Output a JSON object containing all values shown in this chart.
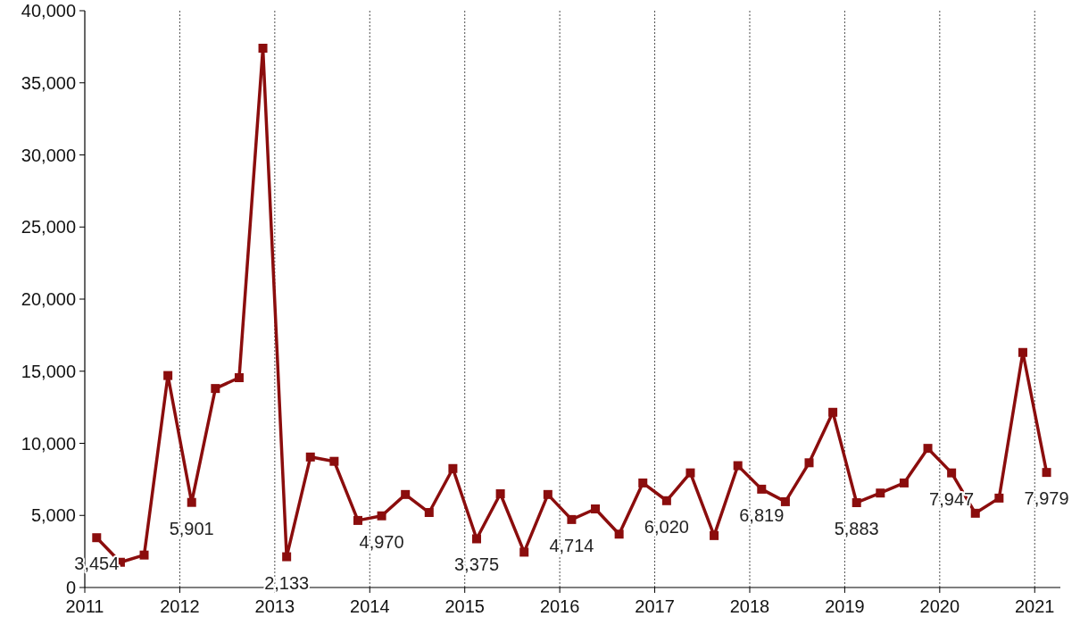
{
  "chart_data": {
    "type": "line",
    "x": [
      2011.125,
      2011.375,
      2011.625,
      2011.875,
      2012.125,
      2012.375,
      2012.625,
      2012.875,
      2013.125,
      2013.375,
      2013.625,
      2013.875,
      2014.125,
      2014.375,
      2014.625,
      2014.875,
      2015.125,
      2015.375,
      2015.625,
      2015.875,
      2016.125,
      2016.375,
      2016.625,
      2016.875,
      2017.125,
      2017.375,
      2017.625,
      2017.875,
      2018.125,
      2018.375,
      2018.625,
      2018.875,
      2019.125,
      2019.375,
      2019.625,
      2019.875,
      2020.125,
      2020.375,
      2020.625,
      2020.875,
      2021.125
    ],
    "series": [
      {
        "color": "#8b0d0d",
        "values": [
          3454,
          1750,
          2250,
          14700,
          5901,
          13800,
          14550,
          37400,
          2133,
          9050,
          8750,
          4650,
          4970,
          6450,
          5200,
          8250,
          3375,
          6500,
          2450,
          6450,
          4714,
          5450,
          3700,
          7250,
          6020,
          7950,
          3600,
          8450,
          6819,
          5950,
          8650,
          12150,
          5883,
          6550,
          7250,
          9650,
          7947,
          5150,
          6200,
          16300,
          7979
        ],
        "value_labels": [
          "3,454",
          null,
          null,
          null,
          "5,901",
          null,
          null,
          null,
          "2,133",
          null,
          null,
          null,
          "4,970",
          null,
          null,
          null,
          "3,375",
          null,
          null,
          null,
          "4,714",
          null,
          null,
          null,
          "6,020",
          null,
          null,
          null,
          "6,819",
          null,
          null,
          null,
          "5,883",
          null,
          null,
          null,
          "7,947",
          null,
          null,
          null,
          "7,979"
        ]
      }
    ],
    "xlim": [
      2011,
      2021.27
    ],
    "xticks": [
      2011,
      2012,
      2013,
      2014,
      2015,
      2016,
      2017,
      2018,
      2019,
      2020,
      2021
    ],
    "ylim": [
      0,
      40000
    ],
    "yticks": [
      {
        "value": 0,
        "label": "0"
      },
      {
        "value": 5000,
        "label": "5,000"
      },
      {
        "value": 10000,
        "label": "10,000"
      },
      {
        "value": 15000,
        "label": "15,000"
      },
      {
        "value": 20000,
        "label": "20,000"
      },
      {
        "value": 25000,
        "label": "25,000"
      },
      {
        "value": 30000,
        "label": "30,000"
      },
      {
        "value": 35000,
        "label": "35,000"
      },
      {
        "value": 40000,
        "label": "40,000"
      }
    ],
    "grid": "x",
    "marker": "square",
    "line_style": "solid"
  }
}
